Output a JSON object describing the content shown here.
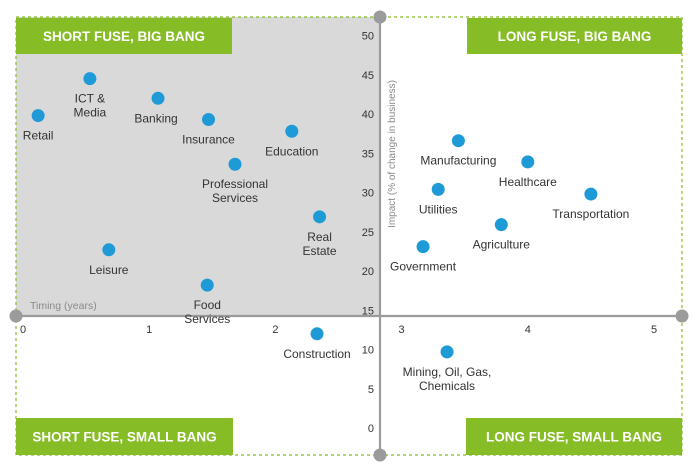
{
  "chart_data": {
    "type": "scatter",
    "title": "",
    "xlabel": "Timing (years)",
    "ylabel": "Impact  (% of change in business)",
    "xlim": [
      0,
      5
    ],
    "ylim": [
      0,
      50
    ],
    "x_ticks": [
      "0",
      "1",
      "2",
      "3",
      "4",
      "5"
    ],
    "y_ticks": [
      "0",
      "5",
      "10",
      "15",
      "20",
      "25",
      "30",
      "35",
      "40",
      "45",
      "50"
    ],
    "grid": false,
    "colors": {
      "point": "#1e9bd7",
      "quadrant_label_bg": "#86bc25",
      "shade": "#d9d9d9",
      "axis": "#9b9b9b",
      "border_dash": "#86bc25"
    },
    "quadrants": [
      {
        "id": "top-left",
        "label": "SHORT FUSE, BIG BANG"
      },
      {
        "id": "top-right",
        "label": "LONG FUSE, BIG BANG"
      },
      {
        "id": "bottom-left",
        "label": "SHORT FUSE, SMALL BANG"
      },
      {
        "id": "bottom-right",
        "label": "LONG FUSE, SMALL BANG"
      }
    ],
    "points": [
      {
        "label": "Retail",
        "x": 0.12,
        "y": 39.8,
        "label_pos": "below"
      },
      {
        "label": "ICT &\nMedia",
        "x": 0.53,
        "y": 44.5,
        "label_pos": "below"
      },
      {
        "label": "Banking",
        "x": 1.07,
        "y": 42.0,
        "label_pos": "below-left"
      },
      {
        "label": "Insurance",
        "x": 1.47,
        "y": 39.3,
        "label_pos": "below"
      },
      {
        "label": "Education",
        "x": 2.13,
        "y": 37.8,
        "label_pos": "below"
      },
      {
        "label": "Professional\nServices",
        "x": 1.68,
        "y": 33.6,
        "label_pos": "below"
      },
      {
        "label": "Real\nEstate",
        "x": 2.35,
        "y": 26.9,
        "label_pos": "below"
      },
      {
        "label": "Leisure",
        "x": 0.68,
        "y": 22.7,
        "label_pos": "below"
      },
      {
        "label": "Food\nServices",
        "x": 1.46,
        "y": 18.2,
        "label_pos": "below"
      },
      {
        "label": "Construction",
        "x": 2.33,
        "y": 12.0,
        "label_pos": "below"
      },
      {
        "label": "Manufacturing",
        "x": 3.45,
        "y": 36.6,
        "label_pos": "below"
      },
      {
        "label": "Healthcare",
        "x": 4.0,
        "y": 33.9,
        "label_pos": "below"
      },
      {
        "label": "Utilities",
        "x": 3.29,
        "y": 30.4,
        "label_pos": "below"
      },
      {
        "label": "Transportation",
        "x": 4.5,
        "y": 29.8,
        "label_pos": "below"
      },
      {
        "label": "Agriculture",
        "x": 3.79,
        "y": 25.9,
        "label_pos": "below"
      },
      {
        "label": "Government",
        "x": 3.17,
        "y": 23.1,
        "label_pos": "below"
      },
      {
        "label": "Mining, Oil, Gas,\nChemicals",
        "x": 3.36,
        "y": 9.7,
        "label_pos": "below"
      }
    ]
  }
}
